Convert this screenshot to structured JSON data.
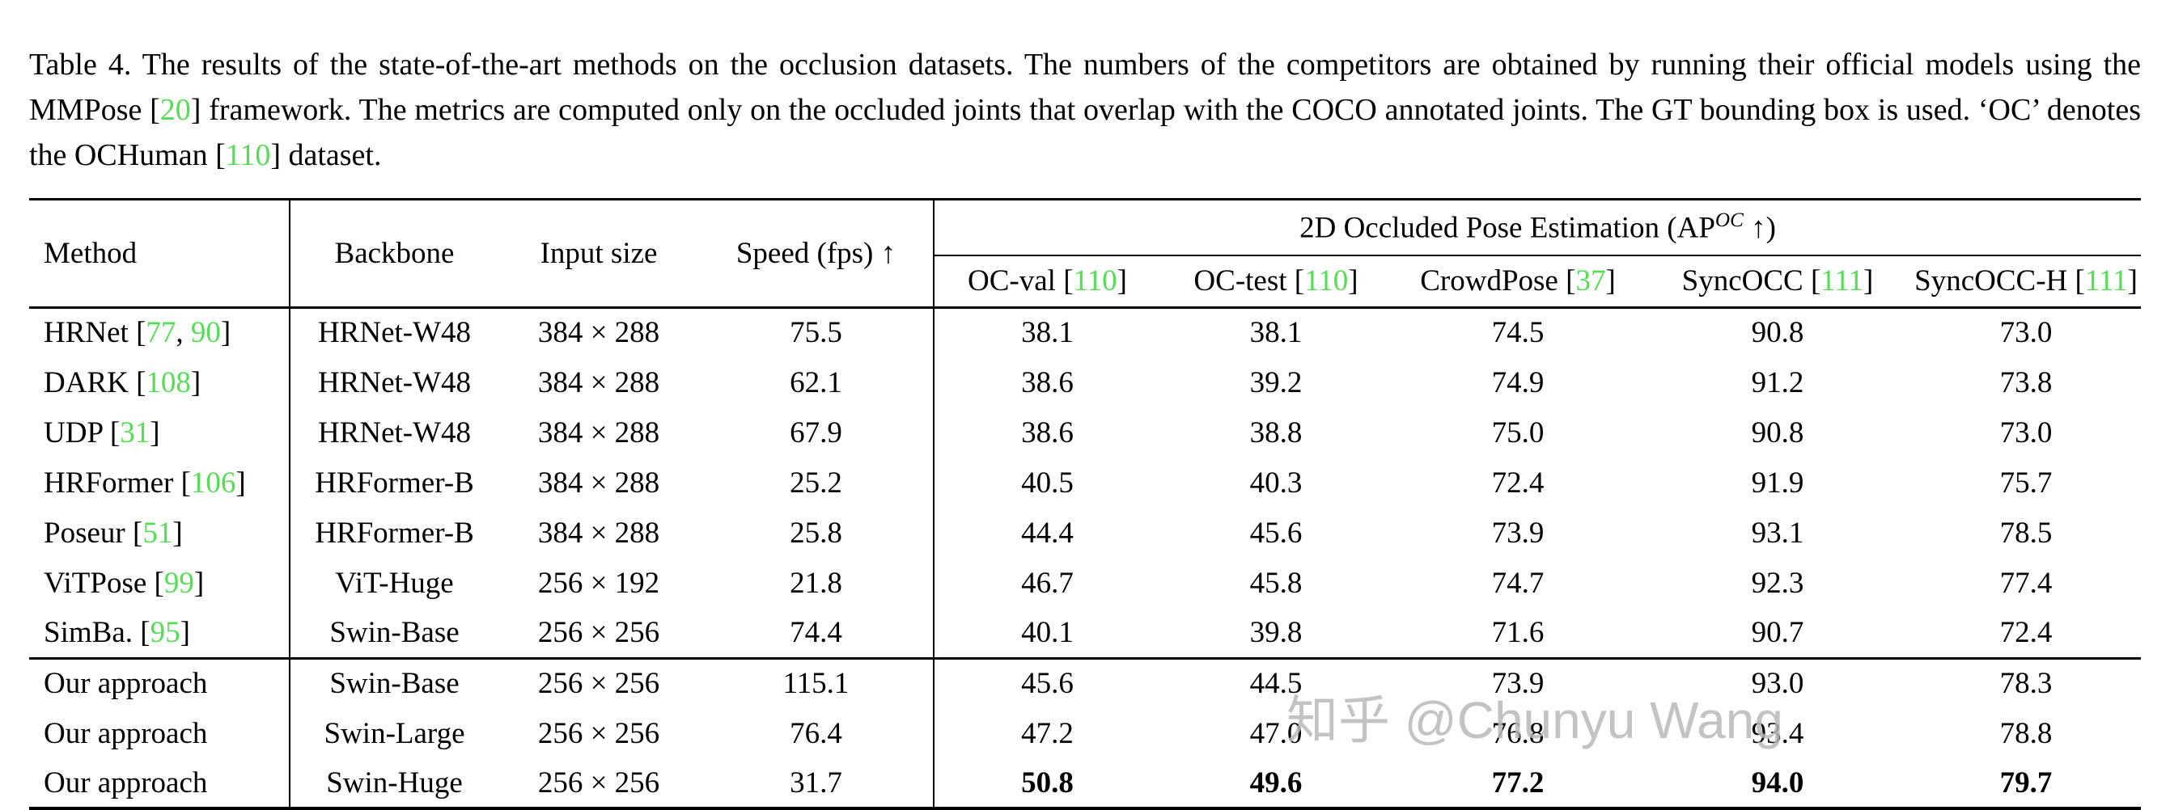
{
  "caption": {
    "segments": [
      {
        "text": "Table 4. The results of the state-of-the-art methods on the occlusion datasets. The numbers of the competitors are obtained by running their official models using the MMPose ["
      },
      {
        "text": "20",
        "ref": true
      },
      {
        "text": "] framework. The metrics are computed only on the occluded joints that overlap with the COCO annotated joints. The GT bounding box is used. ‘OC’ denotes the OCHuman ["
      },
      {
        "text": "110",
        "ref": true
      },
      {
        "text": "] dataset."
      }
    ]
  },
  "table": {
    "columns": {
      "method": "Method",
      "backbone": "Backbone",
      "input_size": "Input size",
      "speed": "Speed (fps) ↑"
    },
    "group": {
      "prefix": "2D Occluded Pose Estimation (AP",
      "sup": "OC",
      "suffix": " ↑)"
    },
    "datasets": [
      {
        "name": "OC-val",
        "ref": "110"
      },
      {
        "name": "OC-test",
        "ref": "110"
      },
      {
        "name": "CrowdPose",
        "ref": "37"
      },
      {
        "name": "SyncOCC",
        "ref": "111"
      },
      {
        "name": "SyncOCC-H",
        "ref": "111"
      }
    ],
    "rows": [
      {
        "method": "HRNet",
        "refs": [
          "77",
          "90"
        ],
        "backbone": "HRNet-W48",
        "input_size": "384 × 288",
        "speed": "75.5",
        "values": [
          "38.1",
          "38.1",
          "74.5",
          "90.8",
          "73.0"
        ],
        "section_start": false,
        "bold_values": false
      },
      {
        "method": "DARK",
        "refs": [
          "108"
        ],
        "backbone": "HRNet-W48",
        "input_size": "384 × 288",
        "speed": "62.1",
        "values": [
          "38.6",
          "39.2",
          "74.9",
          "91.2",
          "73.8"
        ],
        "section_start": false,
        "bold_values": false
      },
      {
        "method": "UDP",
        "refs": [
          "31"
        ],
        "backbone": "HRNet-W48",
        "input_size": "384 × 288",
        "speed": "67.9",
        "values": [
          "38.6",
          "38.8",
          "75.0",
          "90.8",
          "73.0"
        ],
        "section_start": false,
        "bold_values": false
      },
      {
        "method": "HRFormer",
        "refs": [
          "106"
        ],
        "backbone": "HRFormer-B",
        "input_size": "384 × 288",
        "speed": "25.2",
        "values": [
          "40.5",
          "40.3",
          "72.4",
          "91.9",
          "75.7"
        ],
        "section_start": false,
        "bold_values": false
      },
      {
        "method": "Poseur",
        "refs": [
          "51"
        ],
        "backbone": "HRFormer-B",
        "input_size": "384 × 288",
        "speed": "25.8",
        "values": [
          "44.4",
          "45.6",
          "73.9",
          "93.1",
          "78.5"
        ],
        "section_start": false,
        "bold_values": false
      },
      {
        "method": "ViTPose",
        "refs": [
          "99"
        ],
        "backbone": "ViT-Huge",
        "input_size": "256 × 192",
        "speed": "21.8",
        "values": [
          "46.7",
          "45.8",
          "74.7",
          "92.3",
          "77.4"
        ],
        "section_start": false,
        "bold_values": false
      },
      {
        "method": "SimBa.",
        "refs": [
          "95"
        ],
        "backbone": "Swin-Base",
        "input_size": "256 × 256",
        "speed": "74.4",
        "values": [
          "40.1",
          "39.8",
          "71.6",
          "90.7",
          "72.4"
        ],
        "section_start": false,
        "bold_values": false
      },
      {
        "method": "Our approach",
        "refs": [],
        "backbone": "Swin-Base",
        "input_size": "256 × 256",
        "speed": "115.1",
        "values": [
          "45.6",
          "44.5",
          "73.9",
          "93.0",
          "78.3"
        ],
        "section_start": true,
        "bold_values": false
      },
      {
        "method": "Our approach",
        "refs": [],
        "backbone": "Swin-Large",
        "input_size": "256 × 256",
        "speed": "76.4",
        "values": [
          "47.2",
          "47.0",
          "76.8",
          "93.4",
          "78.8"
        ],
        "section_start": false,
        "bold_values": false
      },
      {
        "method": "Our approach",
        "refs": [],
        "backbone": "Swin-Huge",
        "input_size": "256 × 256",
        "speed": "31.7",
        "values": [
          "50.8",
          "49.6",
          "77.2",
          "94.0",
          "79.7"
        ],
        "section_start": false,
        "bold_values": true
      }
    ]
  },
  "watermark": "知乎 @Chunyu Wang",
  "colors": {
    "ref_green": "#55DD55",
    "watermark_gray": "#b9b9b9"
  }
}
